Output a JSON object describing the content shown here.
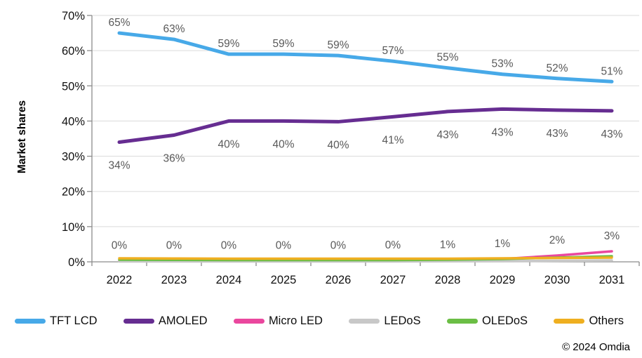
{
  "chart_data": {
    "type": "line",
    "title": "",
    "y_axis_title": "Market shares",
    "categories": [
      "2022",
      "2023",
      "2024",
      "2025",
      "2026",
      "2027",
      "2028",
      "2029",
      "2030",
      "2031"
    ],
    "y_ticks": [
      "0%",
      "10%",
      "20%",
      "30%",
      "40%",
      "50%",
      "60%",
      "70%"
    ],
    "ylim": [
      0,
      70
    ],
    "grid": "horizontal",
    "legend_position": "bottom",
    "series": [
      {
        "name": "TFT LCD",
        "color": "#47A9E8",
        "label_side": "above",
        "values": [
          65,
          63.2,
          59,
          59,
          58.6,
          57,
          55.1,
          53.3,
          52.1,
          51.2
        ],
        "labels": [
          "65%",
          "63%",
          "59%",
          "59%",
          "59%",
          "57%",
          "55%",
          "53%",
          "52%",
          "51%"
        ]
      },
      {
        "name": "AMOLED",
        "color": "#662D91",
        "label_side": "below",
        "values": [
          34,
          36,
          40,
          40,
          39.8,
          41.2,
          42.7,
          43.4,
          43.1,
          42.9
        ],
        "labels": [
          "34%",
          "36%",
          "40%",
          "40%",
          "40%",
          "41%",
          "43%",
          "43%",
          "43%",
          "43%"
        ]
      },
      {
        "name": "Micro LED",
        "color": "#EA479E",
        "label_side": "above_far",
        "values": [
          0.3,
          0.3,
          0.3,
          0.3,
          0.3,
          0.35,
          0.5,
          0.8,
          1.8,
          3.0
        ],
        "labels": [
          "0%",
          "0%",
          "0%",
          "0%",
          "0%",
          "0%",
          "1%",
          "1%",
          "2%",
          "3%"
        ]
      },
      {
        "name": "LEDoS",
        "color": "#C8C8C8",
        "label_side": "none",
        "values": [
          0.1,
          0.1,
          0.1,
          0.1,
          0.1,
          0.1,
          0.15,
          0.2,
          0.3,
          0.4
        ],
        "labels": null
      },
      {
        "name": "OLEDoS",
        "color": "#6BBE45",
        "label_side": "none",
        "values": [
          0.6,
          0.55,
          0.5,
          0.5,
          0.5,
          0.5,
          0.6,
          0.8,
          1.2,
          1.6
        ],
        "labels": null
      },
      {
        "name": "Others",
        "color": "#EFAF20",
        "label_side": "none",
        "values": [
          1.0,
          0.95,
          0.9,
          0.9,
          0.9,
          0.9,
          0.9,
          1.0,
          1.1,
          1.2
        ],
        "labels": null
      }
    ]
  },
  "footer": {
    "copyright": "© 2024 Omdia"
  },
  "styles": {
    "grid_color": "#E2E2E2",
    "axis_color": "#8C8C8C",
    "data_label_color": "#595959",
    "tick_label_color": "#111111"
  }
}
